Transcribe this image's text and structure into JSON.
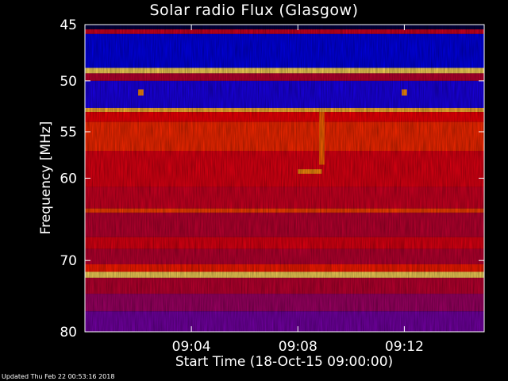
{
  "chart_data": {
    "type": "heatmap",
    "title": "Solar radio Flux (Glasgow)",
    "xlabel": "Start Time (18-Oct-15 09:00:00)",
    "ylabel": "Frequency [MHz]",
    "x_unit": "minutes after 09:00:00",
    "x_range": [
      0,
      15
    ],
    "x_ticks": [
      {
        "value": 4,
        "label": "09:04"
      },
      {
        "value": 8,
        "label": "09:08"
      },
      {
        "value": 12,
        "label": "09:12"
      }
    ],
    "y_scale": "log",
    "y_range": [
      45,
      80
    ],
    "y_ticks": [
      45,
      50,
      55,
      60,
      70,
      80
    ],
    "colormap": [
      "#000040",
      "#0000ff",
      "#8000a0",
      "#c00030",
      "#ff0000",
      "#ff8000",
      "#ffff80"
    ],
    "bands": [
      {
        "from": 45.0,
        "to": 45.4,
        "level": 0.0
      },
      {
        "from": 45.4,
        "to": 45.8,
        "level": 0.55
      },
      {
        "from": 45.8,
        "to": 48.8,
        "level": 0.15
      },
      {
        "from": 48.8,
        "to": 49.3,
        "level": 0.95
      },
      {
        "from": 49.3,
        "to": 50.0,
        "level": 0.5
      },
      {
        "from": 50.0,
        "to": 52.6,
        "level": 0.2
      },
      {
        "from": 52.6,
        "to": 53.0,
        "level": 0.9
      },
      {
        "from": 53.0,
        "to": 54.0,
        "level": 0.65
      },
      {
        "from": 54.0,
        "to": 57.0,
        "level": 0.72
      },
      {
        "from": 57.0,
        "to": 61.0,
        "level": 0.6
      },
      {
        "from": 61.0,
        "to": 63.5,
        "level": 0.55
      },
      {
        "from": 63.5,
        "to": 64.0,
        "level": 0.75
      },
      {
        "from": 64.0,
        "to": 67.0,
        "level": 0.5
      },
      {
        "from": 67.0,
        "to": 68.5,
        "level": 0.6
      },
      {
        "from": 68.5,
        "to": 70.5,
        "level": 0.5
      },
      {
        "from": 70.5,
        "to": 71.5,
        "level": 0.7
      },
      {
        "from": 71.5,
        "to": 72.3,
        "level": 0.95
      },
      {
        "from": 72.3,
        "to": 74.5,
        "level": 0.5
      },
      {
        "from": 74.5,
        "to": 77.0,
        "level": 0.42
      },
      {
        "from": 77.0,
        "to": 80.0,
        "level": 0.32
      }
    ],
    "features": [
      {
        "x": [
          8.0,
          8.9
        ],
        "y": [
          59.0,
          59.5
        ],
        "level": 0.85
      },
      {
        "x": [
          8.8,
          9.0
        ],
        "y": [
          53.0,
          58.5
        ],
        "level": 0.8
      },
      {
        "x": [
          2.0,
          2.2
        ],
        "y": [
          50.8,
          51.4
        ],
        "level": 0.85
      },
      {
        "x": [
          11.9,
          12.1
        ],
        "y": [
          50.8,
          51.4
        ],
        "level": 0.85
      }
    ]
  },
  "footer": {
    "updated": "Updated Thu Feb 22 00:53:16 2018"
  }
}
